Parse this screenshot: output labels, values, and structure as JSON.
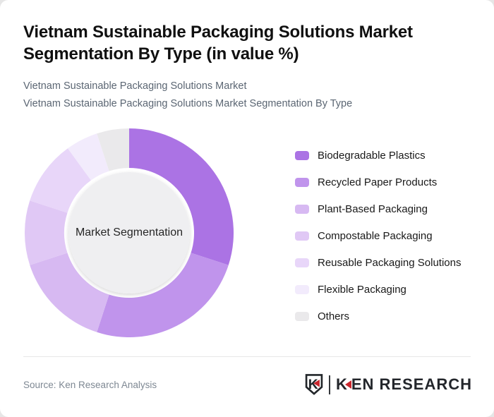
{
  "page": {
    "background_color": "#e6e6e6",
    "card_color": "#ffffff"
  },
  "header": {
    "title_line1": "Vietnam Sustainable Packaging Solutions Market",
    "title_line2": "Segmentation By Type (in value %)",
    "subtitle_line1": "Vietnam Sustainable Packaging Solutions Market",
    "subtitle_line2": "Vietnam Sustainable Packaging Solutions Market Segmentation By Type"
  },
  "chart_data": {
    "type": "pie",
    "variant": "donut",
    "title": "Vietnam Sustainable Packaging Solutions Market Segmentation By Type (in value %)",
    "unit": "value %",
    "center_label": "Market Segmentation",
    "start_angle_deg": 0,
    "direction": "clockwise",
    "legend_position": "right",
    "hole_color": "#efeff1",
    "outer_radius_px": 148,
    "inner_radius_px": 92,
    "segments": [
      {
        "label": "Biodegradable Plastics",
        "value": 30,
        "color": "#ab73e4"
      },
      {
        "label": "Recycled Paper Products",
        "value": 25,
        "color": "#c094ec"
      },
      {
        "label": "Plant-Based Packaging",
        "value": 15,
        "color": "#d7b9f2"
      },
      {
        "label": "Compostable Packaging",
        "value": 10,
        "color": "#e0c8f5"
      },
      {
        "label": "Reusable Packaging Solutions",
        "value": 10,
        "color": "#e8d6f9"
      },
      {
        "label": "Flexible Packaging",
        "value": 5,
        "color": "#f2ebfc"
      },
      {
        "label": "Others",
        "value": 5,
        "color": "#eae9eb"
      }
    ]
  },
  "footer": {
    "source": "Source: Ken Research Analysis",
    "logo": {
      "shield_letter": "K",
      "wordmark_first": "K",
      "wordmark_rest": "EN RESEARCH",
      "accent_color": "#c9252c",
      "text_color": "#23262b"
    }
  }
}
